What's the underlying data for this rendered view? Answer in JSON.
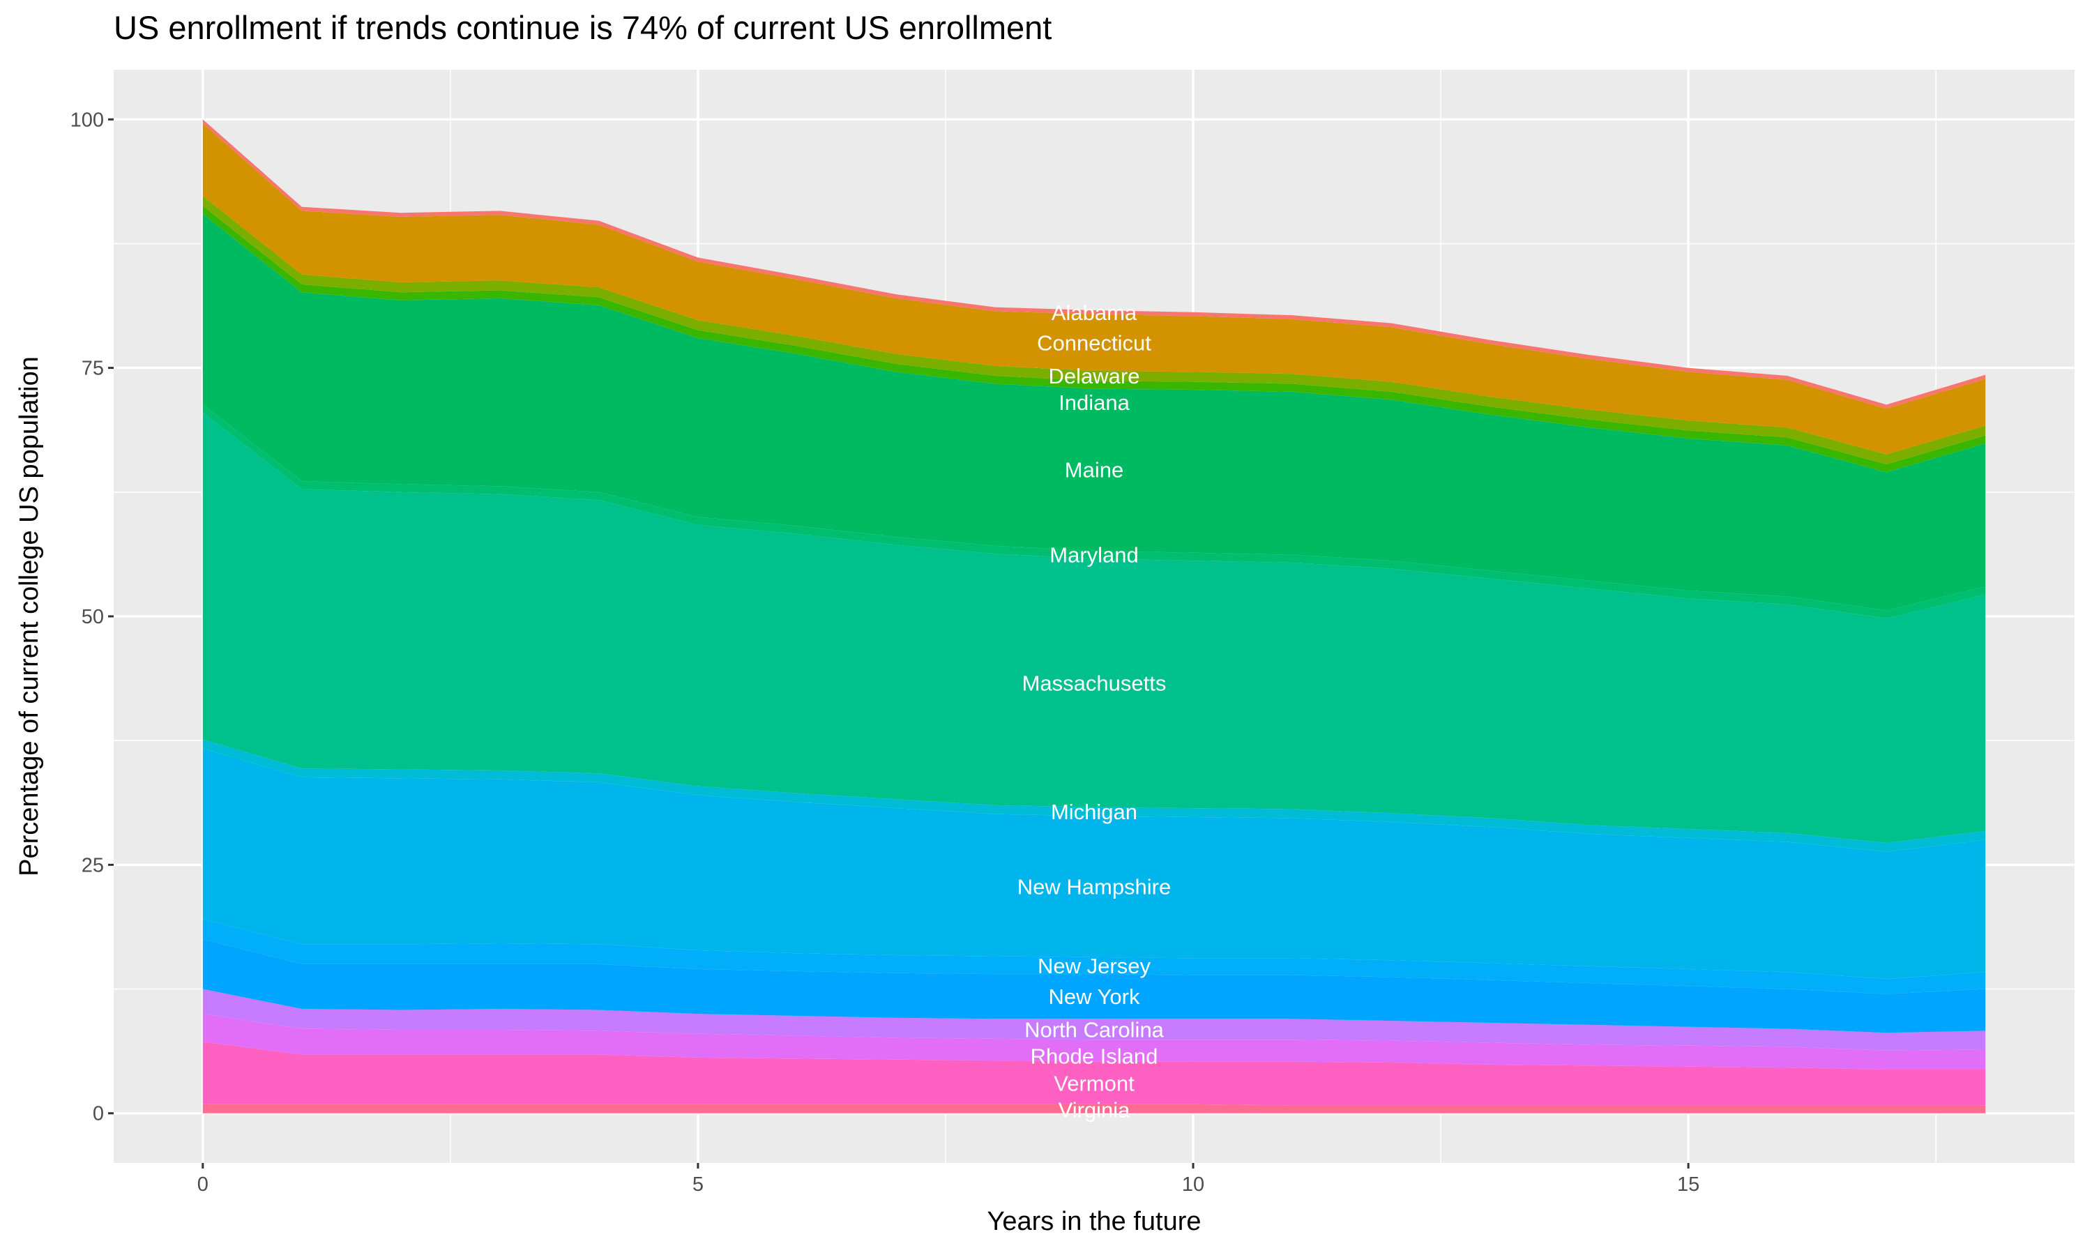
{
  "chart_data": {
    "type": "area",
    "stacked": true,
    "title": "US enrollment if trends continue is 74% of current US enrollment",
    "xlabel": "Years in the future",
    "ylabel": "Percentage of current college US population",
    "xlim": [
      -0.9,
      18.9
    ],
    "ylim": [
      -5,
      105
    ],
    "xticks": [
      0,
      5,
      10,
      15
    ],
    "yticks": [
      0,
      25,
      50,
      75,
      100
    ],
    "grid": true,
    "legend": "none",
    "x": [
      0,
      1,
      2,
      3,
      4,
      5,
      6,
      7,
      8,
      9,
      10,
      11,
      12,
      13,
      14,
      15,
      16,
      17,
      18
    ],
    "label_x": 9,
    "series": [
      {
        "name": "Virginia",
        "color": "#FF6C91",
        "values": [
          0.9,
          0.9,
          0.9,
          0.9,
          0.9,
          0.9,
          0.9,
          0.9,
          0.9,
          0.9,
          0.9,
          0.8,
          0.8,
          0.8,
          0.8,
          0.8,
          0.8,
          0.8,
          0.8
        ]
      },
      {
        "name": "Vermont",
        "color": "#FF61C3",
        "values": [
          6.3,
          5.0,
          5.0,
          5.0,
          5.0,
          4.7,
          4.6,
          4.5,
          4.4,
          4.3,
          4.3,
          4.4,
          4.3,
          4.1,
          4.0,
          3.9,
          3.8,
          3.6,
          3.6
        ]
      },
      {
        "name": "Rhode Island",
        "color": "#E26EF7",
        "values": [
          2.8,
          2.6,
          2.5,
          2.5,
          2.4,
          2.4,
          2.3,
          2.2,
          2.2,
          2.2,
          2.2,
          2.2,
          2.2,
          2.2,
          2.1,
          2.1,
          2.1,
          1.9,
          2.0
        ]
      },
      {
        "name": "North Carolina",
        "color": "#C77CFF",
        "values": [
          2.5,
          2.0,
          2.0,
          2.1,
          2.1,
          2.0,
          2.0,
          2.0,
          2.0,
          2.1,
          2.1,
          2.1,
          2.0,
          2.0,
          2.0,
          1.9,
          1.8,
          1.8,
          1.9
        ]
      },
      {
        "name": "New York",
        "color": "#00A5FF",
        "values": [
          5.0,
          4.5,
          4.6,
          4.5,
          4.6,
          4.5,
          4.5,
          4.5,
          4.5,
          4.5,
          4.4,
          4.4,
          4.4,
          4.3,
          4.2,
          4.1,
          4.0,
          3.9,
          4.2
        ]
      },
      {
        "name": "New Jersey",
        "color": "#00AEFA",
        "values": [
          2.0,
          2.0,
          2.0,
          2.1,
          2.0,
          1.9,
          1.8,
          1.8,
          1.8,
          1.7,
          1.7,
          1.7,
          1.7,
          1.7,
          1.7,
          1.7,
          1.7,
          1.5,
          1.7
        ]
      },
      {
        "name": "New Hampshire",
        "color": "#00B5EB",
        "values": [
          17.2,
          16.8,
          16.7,
          16.5,
          16.3,
          15.6,
          15.2,
          14.8,
          14.3,
          14.2,
          14.2,
          14.1,
          13.9,
          13.7,
          13.3,
          13.2,
          13.1,
          12.8,
          13.3
        ]
      },
      {
        "name": "Michigan",
        "color": "#00BCD6",
        "values": [
          0.9,
          0.9,
          0.9,
          0.9,
          0.9,
          0.9,
          0.9,
          0.9,
          0.9,
          0.9,
          0.9,
          0.9,
          0.9,
          0.9,
          0.9,
          0.9,
          0.9,
          0.9,
          0.9
        ]
      },
      {
        "name": "Massachusetts",
        "color": "#00C08B",
        "values": [
          32.9,
          28.1,
          27.9,
          27.8,
          27.5,
          26.3,
          26.1,
          25.6,
          25.3,
          25.0,
          24.9,
          24.8,
          24.6,
          24.1,
          23.8,
          23.2,
          23.0,
          22.6,
          23.8
        ]
      },
      {
        "name": "Maryland",
        "color": "#00BE70",
        "values": [
          0.8,
          0.8,
          0.8,
          0.8,
          0.8,
          0.8,
          0.8,
          0.8,
          0.8,
          0.8,
          0.8,
          0.8,
          0.8,
          0.8,
          0.8,
          0.8,
          0.8,
          0.8,
          0.8
        ]
      },
      {
        "name": "Maine",
        "color": "#00BA62",
        "values": [
          19.2,
          19.0,
          18.5,
          18.9,
          18.8,
          18.0,
          17.3,
          16.6,
          16.3,
          16.3,
          16.4,
          16.4,
          16.2,
          15.7,
          15.4,
          15.3,
          15.2,
          13.9,
          14.4
        ]
      },
      {
        "name": "Indiana",
        "color": "#39B600",
        "values": [
          0.8,
          0.8,
          0.8,
          0.8,
          0.8,
          0.8,
          0.8,
          0.8,
          0.8,
          0.8,
          0.8,
          0.8,
          0.8,
          0.8,
          0.8,
          0.8,
          0.8,
          0.8,
          0.8
        ]
      },
      {
        "name": "Delaware",
        "color": "#7CAE00",
        "values": [
          1.0,
          1.0,
          1.0,
          1.0,
          1.0,
          1.0,
          1.0,
          1.0,
          1.0,
          1.0,
          1.0,
          1.0,
          1.0,
          1.0,
          1.0,
          1.0,
          1.0,
          1.0,
          1.0
        ]
      },
      {
        "name": "Connecticut",
        "color": "#D39200",
        "values": [
          7.3,
          6.4,
          6.6,
          6.6,
          6.3,
          5.9,
          5.7,
          5.6,
          5.5,
          5.7,
          5.6,
          5.5,
          5.5,
          5.3,
          5.1,
          4.9,
          4.8,
          4.6,
          4.7
        ]
      },
      {
        "name": "Alabama",
        "color": "#F8766D",
        "values": [
          0.4,
          0.4,
          0.4,
          0.4,
          0.4,
          0.4,
          0.4,
          0.4,
          0.4,
          0.4,
          0.4,
          0.4,
          0.4,
          0.4,
          0.4,
          0.4,
          0.4,
          0.4,
          0.4
        ]
      }
    ]
  }
}
